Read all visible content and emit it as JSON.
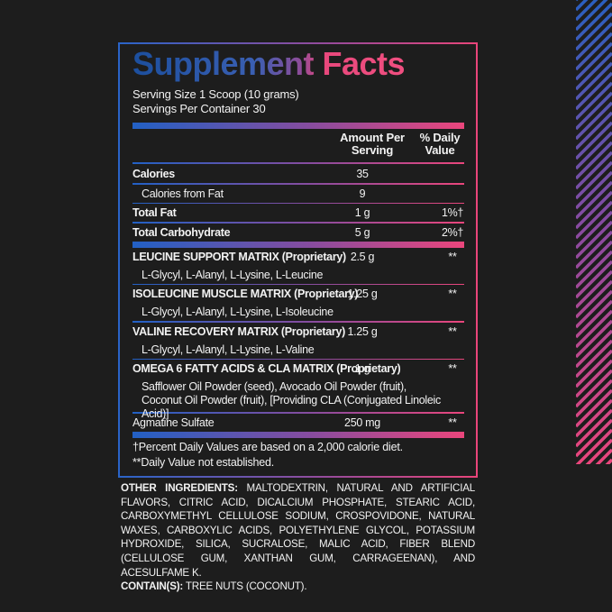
{
  "panel": {
    "title": "Supplement Facts",
    "serving_size": "Serving Size 1 Scoop (10 grams)",
    "servings_per_container": "Servings Per Container 30",
    "columns": {
      "amount": "Amount Per Serving",
      "daily_value": "% Daily Value"
    },
    "rows": [
      {
        "label": "Calories",
        "amount": "35",
        "bold": true,
        "indent": false,
        "rule": "thin"
      },
      {
        "label": "Calories from Fat",
        "amount": "9",
        "bold": false,
        "indent": true,
        "rule": "thin"
      },
      {
        "label": "Total Fat",
        "amount": "1 g",
        "daily_value": "1%†",
        "bold": true,
        "indent": false,
        "rule": "thin"
      },
      {
        "label": "Total Carbohydrate",
        "amount": "5 g",
        "daily_value": "2%†",
        "bold": true,
        "indent": false,
        "rule": "thick"
      },
      {
        "label": "LEUCINE SUPPORT MATRIX (Proprietary)",
        "amount": "2.5 g",
        "daily_value": "**",
        "bold": true,
        "indent": false,
        "rule": "none"
      },
      {
        "label": "L-Glycyl, L-Alanyl, L-Lysine, L-Leucine",
        "bold": false,
        "indent": true,
        "rule": "thin"
      },
      {
        "label": "ISOLEUCINE MUSCLE MATRIX (Proprietary)",
        "amount": "1.25 g",
        "daily_value": "**",
        "bold": true,
        "indent": false,
        "rule": "none"
      },
      {
        "label": "L-Glycyl, L-Alanyl, L-Lysine, L-Isoleucine",
        "bold": false,
        "indent": true,
        "rule": "thin"
      },
      {
        "label": "VALINE RECOVERY MATRIX (Proprietary)",
        "amount": "1.25 g",
        "daily_value": "**",
        "bold": true,
        "indent": false,
        "rule": "none"
      },
      {
        "label": "L-Glycyl, L-Alanyl, L-Lysine, L-Valine",
        "bold": false,
        "indent": true,
        "rule": "thin"
      },
      {
        "label": "OMEGA 6 FATTY ACIDS  & CLA MATRIX (Proprietary)",
        "amount": "1 g",
        "daily_value": "**",
        "bold": true,
        "indent": false,
        "rule": "none"
      },
      {
        "label": "Safflower Oil Powder (seed), Avocado Oil Powder (fruit), Coconut Oil Powder (fruit), [Providing CLA (Conjugated Linoleic Acid)]",
        "bold": false,
        "indent": true,
        "rule": "thin"
      },
      {
        "label": "Agmatine Sulfate",
        "amount": "250 mg",
        "daily_value": "**",
        "bold": false,
        "indent": false,
        "rule": "thick"
      }
    ],
    "footnotes": [
      "†Percent Daily Values are based on a 2,000 calorie diet.",
      "**Daily Value not established."
    ]
  },
  "other_ingredients": {
    "label": "OTHER INGREDIENTS:",
    "text": " MALTODEXTRIN, NATURAL AND ARTIFICIAL FLAVORS, CITRIC ACID, DICALCIUM PHOSPHATE, STEARIC ACID, CARBOXYMETHYL CELLULOSE SODIUM, CROSPOVIDONE, NATURAL WAXES, CARBOXYLIC ACIDS, POLYETHYLENE GLYCOL, POTASSIUM HYDROXIDE, SILICA, SUCRALOSE, MALIC ACID, FIBER BLEND (CELLULOSE GUM, XANTHAN GUM, CARRAGEENAN), AND ACESULFAME K.",
    "contains_label": "CONTAIN(S):",
    "contains_text": " TREE NUTS (COCONUT)."
  }
}
